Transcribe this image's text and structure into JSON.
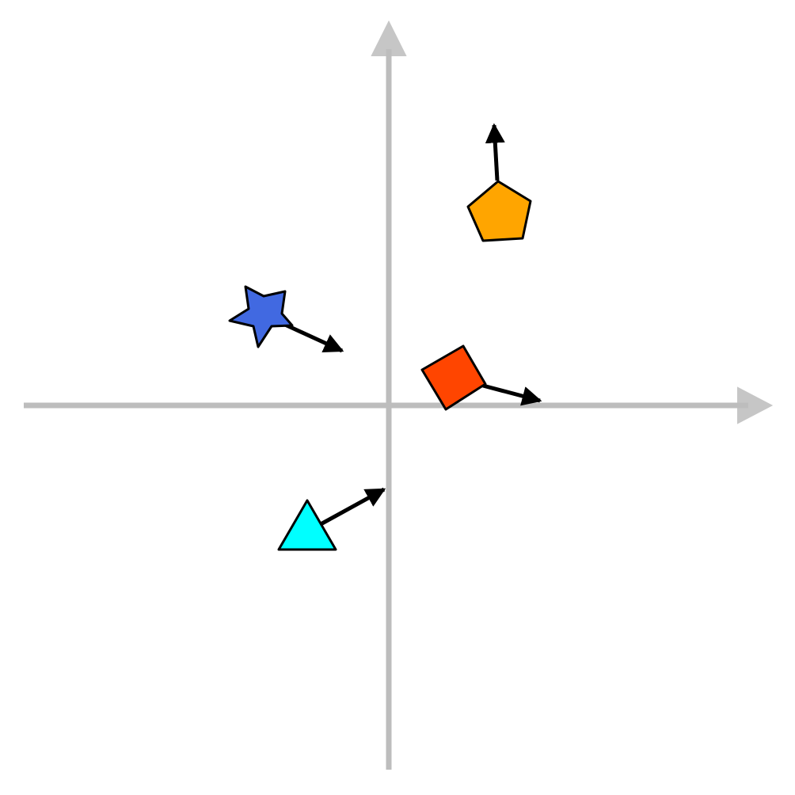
{
  "diagram": {
    "axis_color": "#bdbdbd",
    "arrow_color": "#000000",
    "outline_color": "#000000",
    "shapes": [
      {
        "id": "pentagon",
        "kind": "pentagon",
        "fill": "#ffa500",
        "icon": "pentagon-icon",
        "vector_direction": "up"
      },
      {
        "id": "star",
        "kind": "star",
        "fill": "#4169e1",
        "icon": "star-icon",
        "vector_direction": "down-right"
      },
      {
        "id": "diamond",
        "kind": "square",
        "fill": "#ff4500",
        "icon": "square-icon",
        "vector_direction": "right"
      },
      {
        "id": "triangle",
        "kind": "triangle",
        "fill": "#00ffff",
        "icon": "triangle-icon",
        "vector_direction": "up-right"
      }
    ]
  }
}
